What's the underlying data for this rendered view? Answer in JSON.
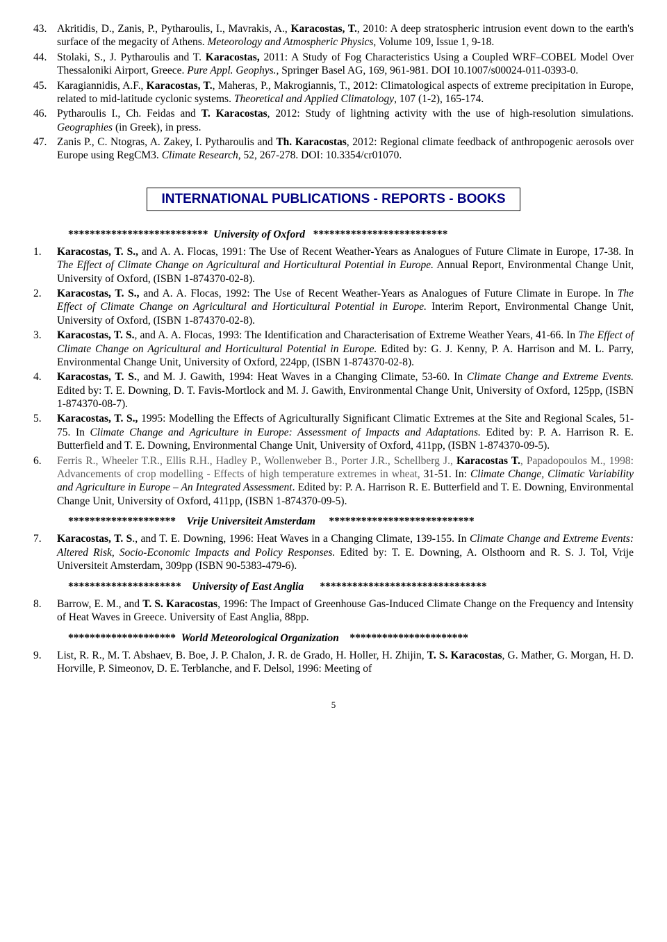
{
  "refs_top": [
    {
      "num": "43.",
      "html": "Akritidis, D., Zanis, P., Pytharoulis, I., Mavrakis, A., <b>Karacostas, T.</b>, 2010: A deep stratospheric intrusion event down to the earth's surface of the megacity of Athens. <i>Meteorology and Atmospheric Physics</i>, Volume 109, Issue 1, 9-18."
    },
    {
      "num": "44.",
      "html": "Stolaki, S., J. Pytharoulis and T. <b>Karacostas,</b> 2011: A Study of Fog Characteristics Using a Coupled WRF–COBEL Model Over Thessaloniki Airport, Greece. <i>Pure Appl. Geophys.,</i> Springer Basel AG, 169, 961-981. DOI 10.1007/s00024-011-0393-0."
    },
    {
      "num": "45.",
      "html": "Karagiannidis, A.F., <b>Karacostas, T.</b>, Maheras, P., Makrogiannis, T., 2012: Climatological aspects of extreme precipitation in Europe, related to mid-latitude cyclonic systems. <i>Theoretical and Applied Climatology</i>, 107 (1-2), 165-174."
    },
    {
      "num": "46.",
      "html": "Pytharoulis I., Ch. Feidas and <b>T. Karacostas</b>, 2012: Study of lightning activity with the use of high-resolution simulations. <i>Geographies</i> (in Greek), in press."
    },
    {
      "num": "47.",
      "html": "Zanis P., C. Ntogras, A. Zakey, I. Pytharoulis and <b>Th. Karacostas</b>, 2012: Regional climate feedback of anthropogenic aerosols over Europe using RegCM3. <i>Climate Research</i>, 52, 267-278. DOI: 10.3354/cr01070."
    }
  ],
  "section_title": "INTERNATIONAL PUBLICATIONS - REPORTS - BOOKS",
  "subheaders": {
    "oxford": {
      "left": "**************************",
      "title": "University  of  Oxford",
      "right": "*************************"
    },
    "vrije": {
      "left": "********************",
      "title": "Vrije Universiteit Amsterdam",
      "right": "***************************"
    },
    "anglia": {
      "left": "*********************",
      "title": "University of East  Anglia",
      "right": "*******************************"
    },
    "wmo": {
      "left": "********************",
      "title": "World   Meteorological  Organization",
      "right": "**********************"
    }
  },
  "refs_oxford": [
    {
      "num": "1.",
      "html": "<b>Karacostas, T. S.,</b> and A. A. Flocas, 1991: The Use of Recent Weather-Years as Analogues of Future Climate in Europe, 17-38. In <i>The Effect of Climate Change on Agricultural and Horticultural Potential in Europe.</i> Annual Report, Environmental Change Unit, University of Oxford, (ISBN 1-874370-02-8)."
    },
    {
      "num": "2.",
      "html": "<b>Karacostas, T. S.,</b> and A. A. Flocas, 1992: The Use of Recent Weather-Years as Analogues of Future Climate in Europe. In <i>The Effect of Climate Change on Agricultural and Horticultural Potential in Europe.</i> Interim Report, Environmental Change Unit, University of Oxford, (ISBN 1-874370-02-8)."
    },
    {
      "num": "3.",
      "html": "<b>Karacostas, T. S.</b>, and A. A. Flocas, 1993: The Identification and Characterisation of Extreme Weather Years, 41-66. In <i>The Effect of Climate Change on Agricultural and Horticultural Potential in Europe.</i> Edited by: G. J. Kenny, P. A. Harrison and M. L. Parry, Environmental Change Unit, University of Oxford, 224pp, (ISBN 1-874370-02-8)."
    },
    {
      "num": "4.",
      "html": "<b>Karacostas, T. S.</b>, and M. J. Gawith, 1994: Heat Waves in a Changing Climate, 53-60. In <i>Climate Change and Extreme Events.</i> Edited by: T. E. Downing, D. T. Favis-Mortlock and M. J. Gawith, Environmental Change Unit, University of Oxford, 125pp, (ISBN 1-874370-08-7)."
    },
    {
      "num": "5.",
      "html": "<b>Karacostas, T. S.,</b> 1995: Modelling the Effects of Agriculturally Significant Climatic Extremes at the Site and Regional Scales, 51-75. In <i>Climate Change and Agriculture in Europe: Assessment of Impacts and Adaptations.</i> Edited by: P. A. Harrison R. E. Butterfield and T. E. Downing, Environmental Change Unit, University of Oxford, 411pp, (ISBN 1-874370-09-5)."
    },
    {
      "num": "6.",
      "html": "<span class='gray'>Ferris R., Wheeler T.R., Ellis R.H., Hadley P., Wollenweber B., Porter J.R., Schellberg J., </span><b>Karacostas T.</b><span class='gray'>, Papadopoulos M., 1998: Advancements of crop modelling - Effects of high temperature extremes in wheat,</span> 31-51. In: <i>Climate Change, Climatic Variability and Agriculture in Europe – An Integrated Assessment</i>. Edited by: P. A. Harrison R. E. Butterfield and T. E. Downing, Environmental Change Unit, University of Oxford, 411pp, (ISBN 1-874370-09-5)."
    }
  ],
  "refs_vrije": [
    {
      "num": "7.",
      "html": "<b>Karacostas, T. S</b>., and T. E. Downing, 1996: Heat Waves in a Changing Climate, 139-155. In <i>Climate Change and Extreme Events: Altered Risk, Socio-Economic Impacts and Policy Responses.</i> Edited by: T. E. Downing, A. Olsthoorn and R. S. J. Tol, Vrije Universiteit Amsterdam, 309pp (ISBN 90-5383-479-6)."
    }
  ],
  "refs_anglia": [
    {
      "num": "8.",
      "html": "Barrow, E. M., and <b>T. S. Karacostas</b>, 1996: The Impact of Greenhouse Gas-Induced Climate Change on the Frequency and Intensity of Heat Waves in Greece. University of East Anglia, 88pp."
    }
  ],
  "refs_wmo": [
    {
      "num": "9.",
      "html": "List, R. R., M. T. Abshaev, B. Boe, J. P. Chalon, J. R. de Grado, H. Holler, H. Zhijin, <b>T. S. Karacostas</b>, G. Mather, G. Morgan, H. D. Horville, P. Simeonov, D. E. Terblanche, and F. Delsol, 1996: Meeting of"
    }
  ],
  "page_number": "5"
}
